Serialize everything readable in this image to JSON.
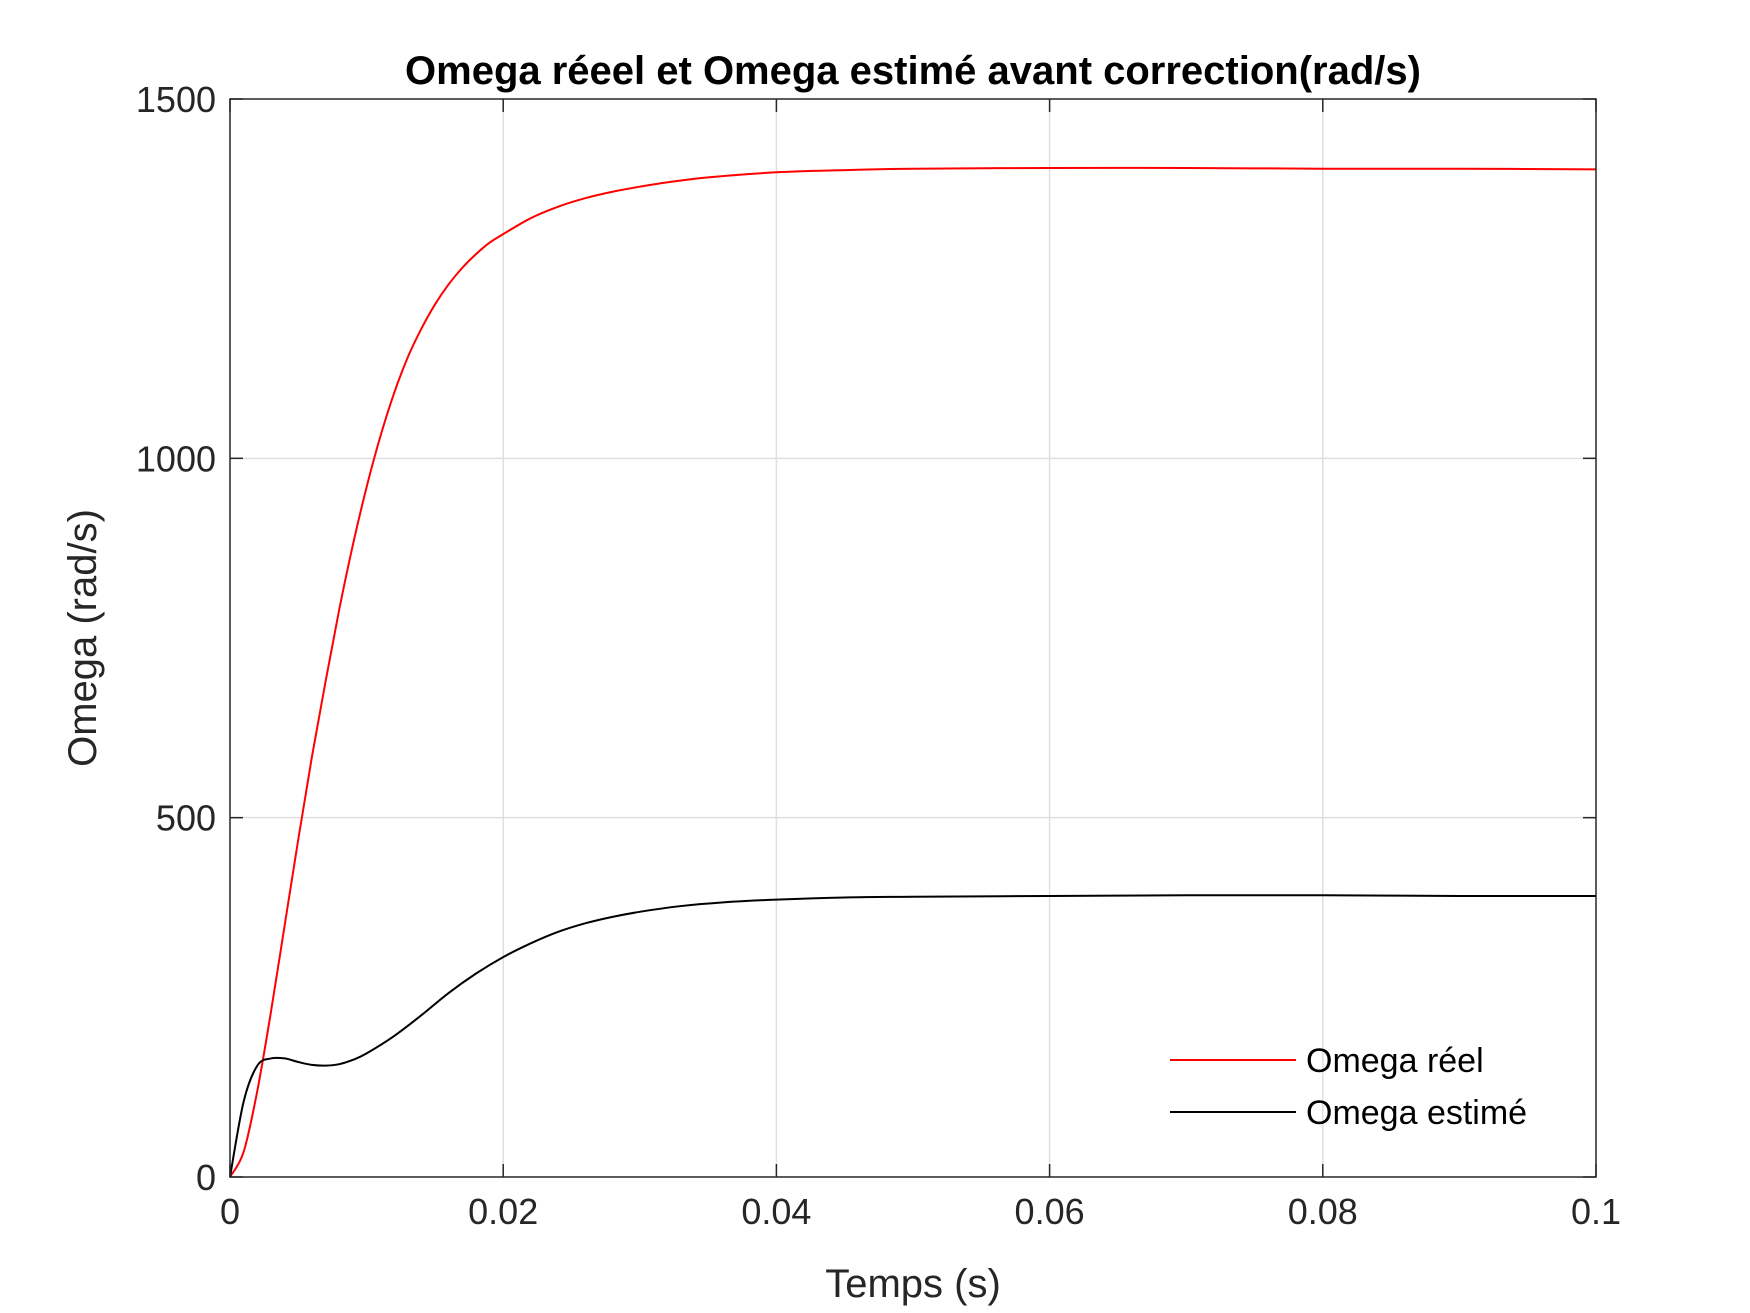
{
  "chart_data": {
    "type": "line",
    "title": "Omega réeel et Omega estimé avant correction(rad/s)",
    "xlabel": "Temps (s)",
    "ylabel": "Omega (rad/s)",
    "xlim": [
      0,
      0.1
    ],
    "ylim": [
      0,
      1500
    ],
    "xticks": [
      0,
      0.02,
      0.04,
      0.06,
      0.08,
      0.1
    ],
    "xtick_labels": [
      "0",
      "0.02",
      "0.04",
      "0.06",
      "0.08",
      "0.1"
    ],
    "yticks": [
      0,
      500,
      1000,
      1500
    ],
    "ytick_labels": [
      "0",
      "500",
      "1000",
      "1500"
    ],
    "grid": true,
    "legend_position": "bottom-right",
    "series": [
      {
        "name": "Omega réel",
        "color": "#ff0000",
        "x": [
          0,
          0.001,
          0.002,
          0.003,
          0.004,
          0.005,
          0.006,
          0.007,
          0.008,
          0.009,
          0.01,
          0.011,
          0.012,
          0.013,
          0.014,
          0.015,
          0.016,
          0.017,
          0.018,
          0.019,
          0.02,
          0.022,
          0.024,
          0.026,
          0.028,
          0.03,
          0.032,
          0.035,
          0.04,
          0.045,
          0.05,
          0.06,
          0.07,
          0.08,
          0.09,
          0.1
        ],
        "y": [
          0,
          35,
          120,
          230,
          350,
          470,
          585,
          690,
          790,
          880,
          960,
          1030,
          1090,
          1140,
          1180,
          1214,
          1242,
          1265,
          1284,
          1300,
          1312,
          1334,
          1350,
          1362,
          1371,
          1378,
          1384,
          1391,
          1398,
          1401,
          1403,
          1404,
          1404,
          1403,
          1403,
          1402
        ]
      },
      {
        "name": "Omega estimé",
        "color": "#000000",
        "x": [
          0,
          0.001,
          0.002,
          0.003,
          0.004,
          0.005,
          0.006,
          0.007,
          0.008,
          0.009,
          0.01,
          0.012,
          0.014,
          0.016,
          0.018,
          0.02,
          0.022,
          0.024,
          0.026,
          0.028,
          0.03,
          0.033,
          0.036,
          0.04,
          0.045,
          0.05,
          0.06,
          0.07,
          0.08,
          0.09,
          0.1
        ],
        "y": [
          0,
          105,
          155,
          165,
          165,
          160,
          156,
          155,
          157,
          163,
          172,
          196,
          225,
          256,
          283,
          306,
          325,
          341,
          353,
          362,
          369,
          377,
          382,
          386,
          389,
          390,
          391,
          392,
          392,
          391,
          391
        ]
      }
    ]
  }
}
